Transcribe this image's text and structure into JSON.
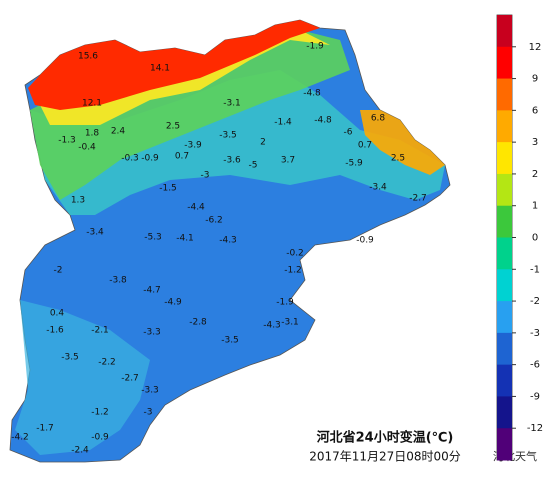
{
  "title": "河北省24小时变温(℃)",
  "date": "2017年11月27日08时00分",
  "watermark": "河北天气",
  "legend": {
    "ticks": [
      12,
      9,
      6,
      3,
      2,
      1,
      0,
      -1,
      -2,
      -3,
      -6,
      -9,
      -12
    ],
    "colors": [
      "#c8001e",
      "#ff0000",
      "#ff6a00",
      "#ffaa00",
      "#ffe600",
      "#b4e614",
      "#3cc83c",
      "#00d28c",
      "#00d2d2",
      "#28a0f0",
      "#1e64d2",
      "#1432b4",
      "#14148c",
      "#500078"
    ]
  },
  "stations": [
    15.6,
    14.1,
    -1.9,
    12.1,
    -4.8,
    -3.1,
    6.8,
    -1.4,
    -4.8,
    -6.0,
    1.8,
    2.4,
    2.5,
    -1.3,
    -0.4,
    -3.5,
    2.0,
    0.7,
    -3.9,
    -0.3,
    -0.9,
    0.7,
    3.7,
    2.5,
    -5.9,
    -3.6,
    -5.0,
    1.3,
    -1.5,
    -3.0,
    -3.4,
    -2.7,
    -4.4,
    -6.2,
    -5.3,
    -4.1,
    -4.3,
    -0.9,
    -3.4,
    -0.2,
    -1.2,
    -2.0,
    -3.8,
    -4.7,
    -1.9,
    -4.9,
    -3.1,
    -2.8,
    -4.3,
    0.4,
    -1.6,
    -2.1,
    -3.3,
    -3.5,
    -3.5,
    -2.2,
    -2.7,
    -3.3,
    -1.2,
    -3.0,
    -4.2,
    -1.7,
    -0.9,
    -2.4
  ]
}
